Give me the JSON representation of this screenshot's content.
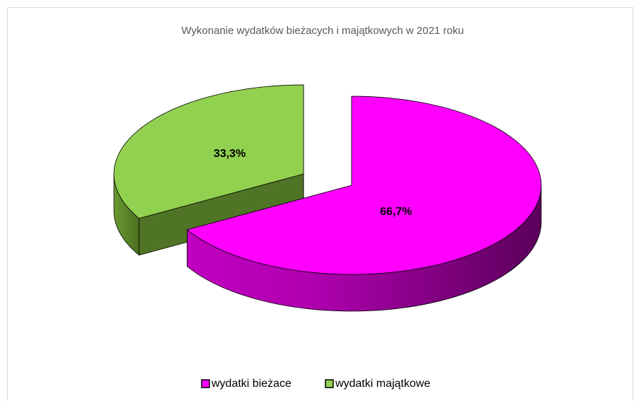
{
  "chart_data": {
    "type": "pie",
    "title": "Wykonanie wydatków bieżacych i majątkowych w 2021 roku",
    "categories": [
      "wydatki bieżace",
      "wydatki majątkowe"
    ],
    "values": [
      66.7,
      33.3
    ],
    "value_labels": [
      "66,7%",
      "33,3%"
    ],
    "colors": [
      "#ff00ff",
      "#92d050"
    ],
    "legend": "bottom"
  }
}
